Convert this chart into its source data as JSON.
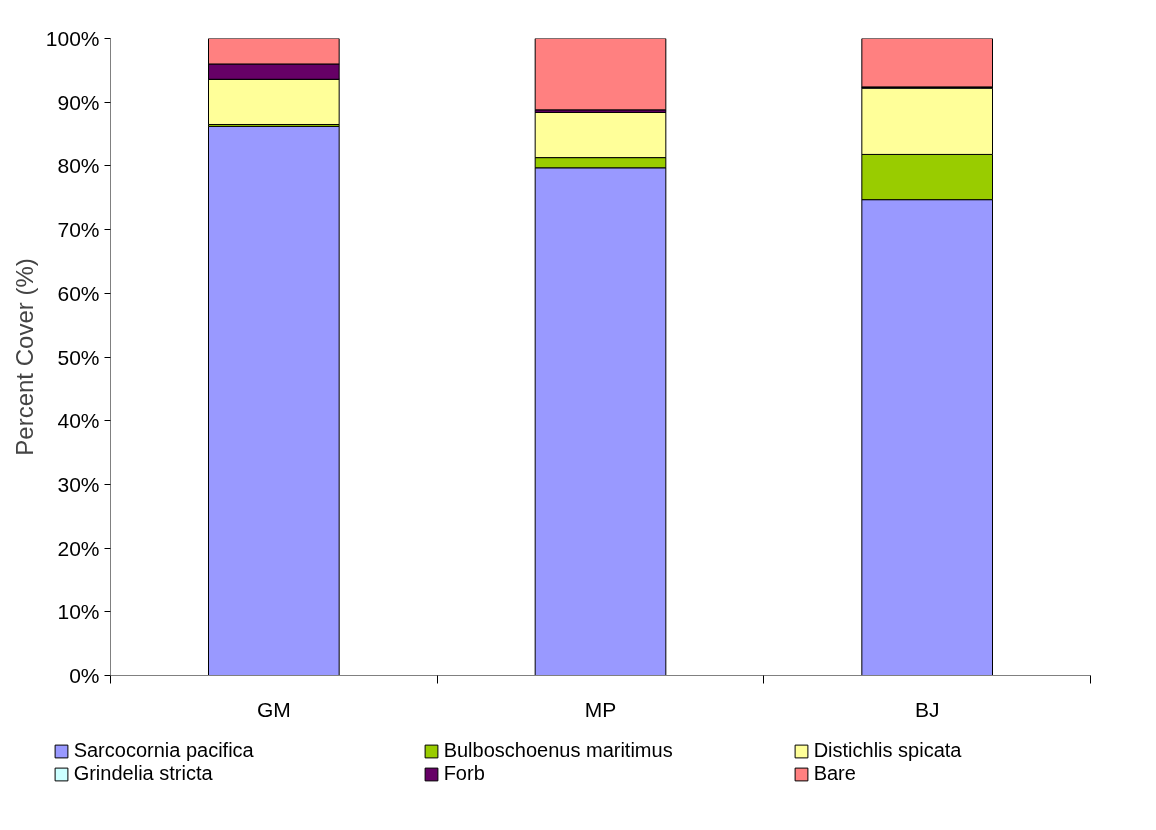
{
  "chart_data": {
    "type": "bar",
    "stacked": true,
    "ylabel": "Percent Cover (%)",
    "categories": [
      "GM",
      "MP",
      "BJ"
    ],
    "series": [
      {
        "name": "Sarcocornia pacifica",
        "color": "#9999ff",
        "values": [
          86.2,
          79.7,
          74.7
        ]
      },
      {
        "name": "Bulboschoenus maritimus",
        "color": "#99cc00",
        "values": [
          0.3,
          1.6,
          7.1
        ]
      },
      {
        "name": "Distichlis spicata",
        "color": "#ffff99",
        "values": [
          7.1,
          7.1,
          10.4
        ]
      },
      {
        "name": "Grindelia stricta",
        "color": "#ccffff",
        "values": [
          0,
          0,
          0.1
        ]
      },
      {
        "name": "Forb",
        "color": "#660066",
        "values": [
          2.4,
          0.4,
          0.1
        ]
      },
      {
        "name": "Bare",
        "color": "#ff8080",
        "values": [
          4.0,
          11.2,
          7.6
        ]
      }
    ],
    "ylim": [
      0,
      100
    ],
    "yticks": [
      {
        "value": 0,
        "label": "0%"
      },
      {
        "value": 10,
        "label": "10%"
      },
      {
        "value": 20,
        "label": "20%"
      },
      {
        "value": 30,
        "label": "30%"
      },
      {
        "value": 40,
        "label": "40%"
      },
      {
        "value": 50,
        "label": "50%"
      },
      {
        "value": 60,
        "label": "60%"
      },
      {
        "value": 70,
        "label": "70%"
      },
      {
        "value": 80,
        "label": "80%"
      },
      {
        "value": 90,
        "label": "90%"
      },
      {
        "value": 100,
        "label": "100%"
      }
    ],
    "grid": false,
    "legend": "bottom"
  }
}
